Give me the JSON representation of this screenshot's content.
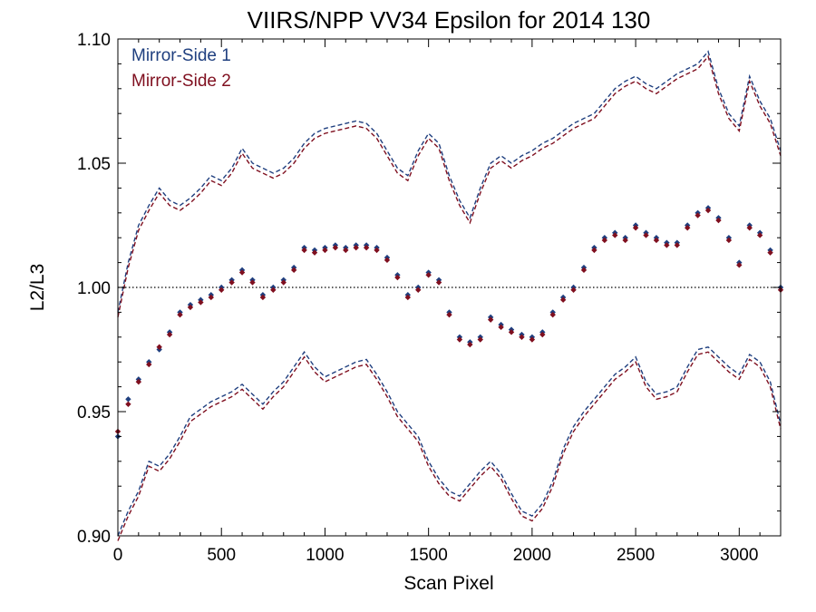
{
  "chart_data": {
    "type": "line",
    "title": "VIIRS/NPP VV34 Epsilon for 2014 130",
    "xlabel": "Scan Pixel",
    "ylabel": "L2/L3",
    "xlim": [
      0,
      3200
    ],
    "ylim": [
      0.9,
      1.1
    ],
    "x_ticks": [
      0,
      500,
      1000,
      1500,
      2000,
      2500,
      3000
    ],
    "x_tick_labels": [
      "0",
      "500",
      "1000",
      "1500",
      "2000",
      "2500",
      "3000"
    ],
    "y_ticks": [
      0.9,
      0.95,
      1.0,
      1.05,
      1.1
    ],
    "y_tick_labels": [
      "0.90",
      "0.95",
      "1.00",
      "1.05",
      "1.10"
    ],
    "reference_line": {
      "y": 1.0,
      "style": "dotted"
    },
    "legend": {
      "placement": "top-left"
    },
    "series_x": [
      0,
      50,
      100,
      150,
      200,
      250,
      300,
      350,
      400,
      450,
      500,
      550,
      600,
      650,
      700,
      750,
      800,
      850,
      900,
      950,
      1000,
      1050,
      1100,
      1150,
      1200,
      1250,
      1300,
      1350,
      1400,
      1450,
      1500,
      1550,
      1600,
      1650,
      1700,
      1750,
      1800,
      1850,
      1900,
      1950,
      2000,
      2050,
      2100,
      2150,
      2200,
      2250,
      2300,
      2350,
      2400,
      2450,
      2500,
      2550,
      2600,
      2650,
      2700,
      2750,
      2800,
      2850,
      2900,
      2950,
      3000,
      3050,
      3100,
      3150,
      3200
    ],
    "series": [
      {
        "name": "Mirror-Side 1",
        "color": "#1f3f7f",
        "style": "points",
        "values": [
          0.94,
          0.955,
          0.963,
          0.97,
          0.975,
          0.982,
          0.99,
          0.993,
          0.995,
          0.997,
          1.0,
          1.003,
          1.007,
          1.003,
          0.997,
          1.0,
          1.003,
          1.008,
          1.016,
          1.015,
          1.016,
          1.017,
          1.016,
          1.017,
          1.017,
          1.016,
          1.012,
          1.005,
          0.997,
          1.0,
          1.006,
          1.003,
          0.99,
          0.98,
          0.978,
          0.98,
          0.988,
          0.985,
          0.983,
          0.981,
          0.98,
          0.982,
          0.99,
          0.996,
          1.0,
          1.008,
          1.016,
          1.02,
          1.022,
          1.02,
          1.025,
          1.022,
          1.02,
          1.018,
          1.018,
          1.025,
          1.03,
          1.032,
          1.028,
          1.02,
          1.01,
          1.025,
          1.022,
          1.015,
          1.0
        ]
      },
      {
        "name": "Mirror-Side 2",
        "color": "#7f0f1f",
        "style": "points",
        "values": [
          0.942,
          0.953,
          0.962,
          0.969,
          0.976,
          0.981,
          0.989,
          0.992,
          0.994,
          0.996,
          0.999,
          1.002,
          1.006,
          1.002,
          0.996,
          0.999,
          1.002,
          1.007,
          1.015,
          1.014,
          1.015,
          1.016,
          1.015,
          1.016,
          1.016,
          1.015,
          1.011,
          1.004,
          0.996,
          0.999,
          1.005,
          1.002,
          0.989,
          0.979,
          0.977,
          0.979,
          0.987,
          0.984,
          0.982,
          0.98,
          0.979,
          0.981,
          0.989,
          0.995,
          0.999,
          1.007,
          1.015,
          1.019,
          1.021,
          1.019,
          1.024,
          1.021,
          1.019,
          1.017,
          1.017,
          1.024,
          1.029,
          1.031,
          1.027,
          1.019,
          1.009,
          1.024,
          1.021,
          1.014,
          0.999
        ]
      },
      {
        "name": "Mirror-Side 1 upper envelope",
        "color": "#1f3f7f",
        "style": "dashed",
        "values": [
          0.99,
          1.01,
          1.025,
          1.033,
          1.04,
          1.035,
          1.033,
          1.036,
          1.04,
          1.045,
          1.043,
          1.048,
          1.056,
          1.05,
          1.048,
          1.046,
          1.048,
          1.052,
          1.058,
          1.062,
          1.064,
          1.065,
          1.066,
          1.067,
          1.066,
          1.062,
          1.055,
          1.048,
          1.045,
          1.055,
          1.062,
          1.058,
          1.045,
          1.035,
          1.028,
          1.04,
          1.05,
          1.053,
          1.05,
          1.053,
          1.055,
          1.058,
          1.06,
          1.063,
          1.066,
          1.068,
          1.07,
          1.075,
          1.08,
          1.083,
          1.085,
          1.082,
          1.08,
          1.083,
          1.086,
          1.088,
          1.09,
          1.095,
          1.08,
          1.07,
          1.065,
          1.085,
          1.075,
          1.068,
          1.055
        ]
      },
      {
        "name": "Mirror-Side 2 upper envelope",
        "color": "#7f0f1f",
        "style": "dashed",
        "values": [
          0.988,
          1.008,
          1.023,
          1.031,
          1.038,
          1.033,
          1.031,
          1.034,
          1.038,
          1.043,
          1.041,
          1.046,
          1.054,
          1.048,
          1.046,
          1.044,
          1.046,
          1.05,
          1.056,
          1.06,
          1.062,
          1.063,
          1.064,
          1.065,
          1.064,
          1.06,
          1.053,
          1.046,
          1.043,
          1.053,
          1.06,
          1.056,
          1.043,
          1.033,
          1.026,
          1.038,
          1.048,
          1.051,
          1.048,
          1.051,
          1.053,
          1.056,
          1.058,
          1.061,
          1.064,
          1.066,
          1.068,
          1.073,
          1.078,
          1.081,
          1.083,
          1.08,
          1.078,
          1.081,
          1.084,
          1.086,
          1.088,
          1.093,
          1.078,
          1.068,
          1.063,
          1.083,
          1.073,
          1.066,
          1.053
        ]
      },
      {
        "name": "Mirror-Side 1 lower envelope",
        "color": "#1f3f7f",
        "style": "dashed",
        "values": [
          0.9,
          0.91,
          0.918,
          0.93,
          0.928,
          0.933,
          0.94,
          0.948,
          0.951,
          0.954,
          0.956,
          0.958,
          0.961,
          0.957,
          0.953,
          0.958,
          0.962,
          0.968,
          0.974,
          0.968,
          0.964,
          0.966,
          0.968,
          0.97,
          0.971,
          0.965,
          0.958,
          0.95,
          0.945,
          0.94,
          0.93,
          0.923,
          0.918,
          0.916,
          0.921,
          0.926,
          0.93,
          0.925,
          0.917,
          0.91,
          0.908,
          0.913,
          0.922,
          0.935,
          0.944,
          0.95,
          0.955,
          0.96,
          0.965,
          0.968,
          0.972,
          0.962,
          0.957,
          0.958,
          0.96,
          0.968,
          0.975,
          0.976,
          0.972,
          0.968,
          0.965,
          0.973,
          0.97,
          0.962,
          0.945
        ]
      },
      {
        "name": "Mirror-Side 2 lower envelope",
        "color": "#7f0f1f",
        "style": "dashed",
        "values": [
          0.898,
          0.908,
          0.916,
          0.928,
          0.926,
          0.931,
          0.938,
          0.946,
          0.949,
          0.952,
          0.954,
          0.956,
          0.959,
          0.955,
          0.951,
          0.956,
          0.96,
          0.966,
          0.972,
          0.966,
          0.962,
          0.964,
          0.966,
          0.968,
          0.969,
          0.963,
          0.956,
          0.948,
          0.943,
          0.938,
          0.928,
          0.921,
          0.916,
          0.914,
          0.919,
          0.924,
          0.928,
          0.923,
          0.915,
          0.908,
          0.906,
          0.911,
          0.92,
          0.933,
          0.942,
          0.948,
          0.953,
          0.958,
          0.963,
          0.966,
          0.97,
          0.96,
          0.955,
          0.956,
          0.958,
          0.966,
          0.973,
          0.974,
          0.97,
          0.966,
          0.963,
          0.971,
          0.968,
          0.96,
          0.943
        ]
      }
    ],
    "legend_entries": [
      "Mirror-Side 1",
      "Mirror-Side 2"
    ]
  }
}
